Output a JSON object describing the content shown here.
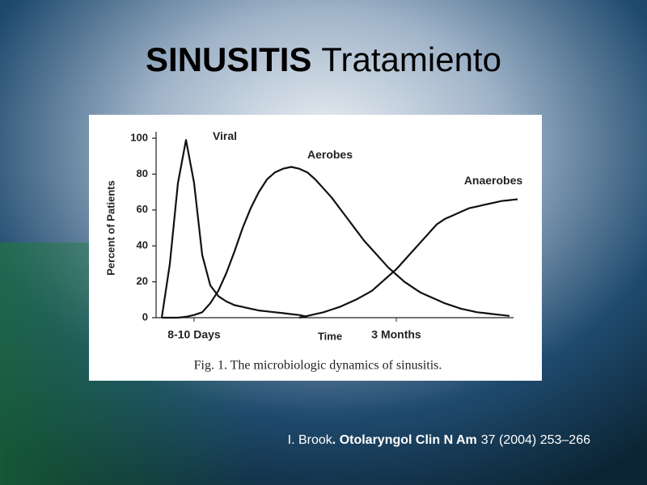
{
  "slide": {
    "title_bold": "SINUSITIS",
    "title_rest": "Tratamiento",
    "citation": {
      "author": "I. Brook",
      "journal": ". Otolaryngol Clin N Am",
      "details": "37 (2004) 253–266"
    }
  },
  "chart_data": {
    "type": "line",
    "caption": "Fig. 1.  The microbiologic dynamics of sinusitis.",
    "y_label": "Percent of Patients",
    "x_label": "Time",
    "categories": [
      null,
      null,
      null,
      null,
      "8-10 Days",
      null,
      null,
      null,
      null,
      null,
      null,
      null,
      null,
      null,
      null,
      null,
      null,
      null,
      null,
      null,
      null,
      null,
      null,
      null,
      null,
      null,
      null,
      null,
      null,
      "3 Months",
      null,
      null,
      null,
      null,
      null,
      null,
      null,
      null,
      null,
      null,
      null,
      null,
      null,
      null,
      null
    ],
    "ylim": [
      0,
      100
    ],
    "yticks": [
      0,
      20,
      40,
      60,
      80,
      100
    ],
    "series": [
      {
        "name": "Viral",
        "color": "#111111",
        "values": [
          0,
          30,
          75,
          99,
          75,
          35,
          18,
          12,
          9,
          7,
          6,
          5,
          4,
          3.5,
          3,
          2.5,
          2,
          1.5,
          0.5,
          null,
          null,
          null,
          null,
          null,
          null,
          null,
          null,
          null,
          null,
          null,
          null,
          null,
          null,
          null,
          null,
          null,
          null,
          null,
          null,
          null,
          null,
          null,
          null,
          null,
          null
        ]
      },
      {
        "name": "Aerobes",
        "color": "#111111",
        "values": [
          0,
          0,
          0,
          0.5,
          1.5,
          3,
          8,
          15,
          25,
          37,
          50,
          61,
          70,
          77,
          81,
          83,
          84,
          83,
          81,
          77,
          72,
          67,
          61,
          55,
          49,
          43,
          38,
          33,
          28,
          24,
          20,
          17,
          14,
          12,
          10,
          8,
          6.5,
          5,
          4,
          3,
          2.5,
          2,
          1.5,
          1,
          null
        ]
      },
      {
        "name": "Anaerobes",
        "color": "#111111",
        "values": [
          null,
          null,
          null,
          null,
          null,
          null,
          null,
          null,
          null,
          null,
          null,
          null,
          null,
          null,
          null,
          null,
          null,
          0,
          1,
          2,
          3,
          4.5,
          6,
          8,
          10,
          12.5,
          15,
          19,
          23,
          27,
          32,
          37,
          42,
          47,
          52,
          55,
          57,
          59,
          61,
          62,
          63,
          64,
          65,
          65.5,
          66
        ]
      }
    ]
  }
}
